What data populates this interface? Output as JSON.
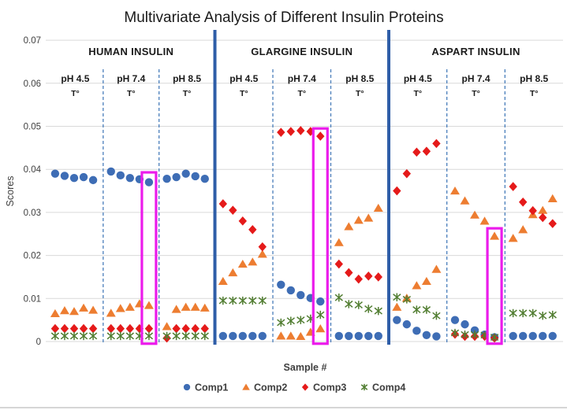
{
  "colors": {
    "comp1": "#3E6DB5",
    "comp2": "#ED7D31",
    "comp3": "#E51A1A",
    "comp4": "#527E32",
    "highlight": "#EB1BEB",
    "section_divider": "#2F5EA8",
    "ph_divider": "#4A7EBB",
    "gridline": "#D9D9D9",
    "text_dark": "#1A1A1A",
    "text_gray": "#404040",
    "legend_text": "#3F3F3F",
    "bottom_border": "#C9C9C9"
  },
  "chart_data": {
    "type": "scatter",
    "title": "Multivariate Analysis of Different Insulin Proteins",
    "xlabel": "Sample #",
    "ylabel": "Scores",
    "ylim": [
      0,
      0.07
    ],
    "grid": true,
    "legend_position": "bottom",
    "yticks": [
      0,
      0.01,
      0.02,
      0.03,
      0.04,
      0.05,
      0.06,
      0.07
    ],
    "ytick_labels": [
      "0",
      "0.01",
      "0.02",
      "0.03",
      "0.04",
      "0.05",
      "0.06",
      "0.07"
    ],
    "series": [
      {
        "name": "Comp1",
        "marker": "circle",
        "color": "#3E6DB5"
      },
      {
        "name": "Comp2",
        "marker": "triangle",
        "color": "#ED7D31"
      },
      {
        "name": "Comp3",
        "marker": "diamond",
        "color": "#E51A1A"
      },
      {
        "name": "Comp4",
        "marker": "asterisk",
        "color": "#527E32"
      }
    ],
    "samples_per_subgroup": 5,
    "groups": [
      {
        "label": "HUMAN INSULIN",
        "subgroups": [
          {
            "label": "pH 4.5",
            "sublabel": "T°",
            "Comp1": [
              0.039,
              0.0385,
              0.038,
              0.0382,
              0.0375
            ],
            "Comp2": [
              0.0065,
              0.0072,
              0.007,
              0.0078,
              0.0073
            ],
            "Comp3": [
              0.003,
              0.003,
              0.003,
              0.003,
              0.003
            ],
            "Comp4": [
              0.0013,
              0.0013,
              0.0013,
              0.0013,
              0.0013
            ]
          },
          {
            "label": "pH 7.4",
            "sublabel": "T°",
            "Comp1": [
              0.0395,
              0.0386,
              0.038,
              0.0377,
              0.037
            ],
            "Comp2": [
              0.0066,
              0.0077,
              0.008,
              0.0088,
              0.0084
            ],
            "Comp3": [
              0.003,
              0.003,
              0.003,
              0.003,
              0.003
            ],
            "Comp4": [
              0.0013,
              0.0013,
              0.0013,
              0.0013,
              0.0013
            ]
          },
          {
            "label": "pH 8.5",
            "sublabel": "T°",
            "Comp1": [
              0.0378,
              0.0382,
              0.039,
              0.0384,
              0.0378
            ],
            "Comp2": [
              0.0035,
              0.0075,
              0.008,
              0.008,
              0.0078
            ],
            "Comp3": [
              0.0008,
              0.003,
              0.003,
              0.003,
              0.003
            ],
            "Comp4": [
              0.0013,
              0.0013,
              0.0013,
              0.0013,
              0.0013
            ]
          }
        ]
      },
      {
        "label": "GLARGINE INSULIN",
        "subgroups": [
          {
            "label": "pH 4.5",
            "sublabel": "T°",
            "Comp1": [
              0.0013,
              0.0013,
              0.0013,
              0.0013,
              0.0013
            ],
            "Comp2": [
              0.014,
              0.016,
              0.018,
              0.0185,
              0.0203
            ],
            "Comp3": [
              0.032,
              0.0305,
              0.028,
              0.026,
              0.022
            ],
            "Comp4": [
              0.0095,
              0.0095,
              0.0095,
              0.0095,
              0.0095
            ]
          },
          {
            "label": "pH 7.4",
            "sublabel": "T°",
            "Comp1": [
              0.0132,
              0.0119,
              0.0108,
              0.0101,
              0.0093
            ],
            "Comp2": [
              0.0013,
              0.0013,
              0.0012,
              0.0022,
              0.003
            ],
            "Comp3": [
              0.0486,
              0.0488,
              0.049,
              0.0488,
              0.0477
            ],
            "Comp4": [
              0.0044,
              0.0048,
              0.005,
              0.0053,
              0.0062
            ]
          },
          {
            "label": "pH 8.5",
            "sublabel": "T°",
            "Comp1": [
              0.0013,
              0.0013,
              0.0013,
              0.0013,
              0.0013
            ],
            "Comp2": [
              0.023,
              0.0267,
              0.0282,
              0.0287,
              0.031
            ],
            "Comp3": [
              0.018,
              0.016,
              0.0145,
              0.0152,
              0.015
            ],
            "Comp4": [
              0.0102,
              0.0087,
              0.0085,
              0.0076,
              0.0071
            ]
          }
        ]
      },
      {
        "label": "ASPART INSULIN",
        "subgroups": [
          {
            "label": "pH 4.5",
            "sublabel": "T°",
            "Comp1": [
              0.005,
              0.004,
              0.0025,
              0.0015,
              0.0012
            ],
            "Comp2": [
              0.008,
              0.0101,
              0.013,
              0.014,
              0.0168
            ],
            "Comp3": [
              0.035,
              0.039,
              0.044,
              0.0442,
              0.046
            ],
            "Comp4": [
              0.0103,
              0.0098,
              0.0074,
              0.0074,
              0.006
            ]
          },
          {
            "label": "pH 7.4",
            "sublabel": "T°",
            "Comp1": [
              0.005,
              0.004,
              0.0026,
              0.0016,
              0.001
            ],
            "Comp2": [
              0.035,
              0.0327,
              0.0294,
              0.028,
              0.0245
            ],
            "Comp3": [
              0.0017,
              0.0012,
              0.0012,
              0.0012,
              0.0008
            ],
            "Comp4": [
              0.002,
              0.0016,
              0.0016,
              0.0015,
              0.001
            ]
          },
          {
            "label": "pH 8.5",
            "sublabel": "T°",
            "Comp1": [
              0.0013,
              0.0013,
              0.0013,
              0.0013,
              0.0013
            ],
            "Comp2": [
              0.024,
              0.026,
              0.0295,
              0.0305,
              0.0332
            ],
            "Comp3": [
              0.036,
              0.0324,
              0.0304,
              0.0288,
              0.0274
            ],
            "Comp4": [
              0.0066,
              0.0066,
              0.0066,
              0.006,
              0.0062
            ]
          }
        ]
      }
    ],
    "highlights": [
      {
        "group": 0,
        "subgroup": 1,
        "sample": 4,
        "v_top": 0.0393,
        "v_bottom": -0.0005
      },
      {
        "group": 1,
        "subgroup": 1,
        "sample": 4,
        "v_top": 0.0495,
        "v_bottom": -0.0005
      },
      {
        "group": 2,
        "subgroup": 1,
        "sample": 4,
        "v_top": 0.0263,
        "v_bottom": -0.0005
      }
    ]
  }
}
